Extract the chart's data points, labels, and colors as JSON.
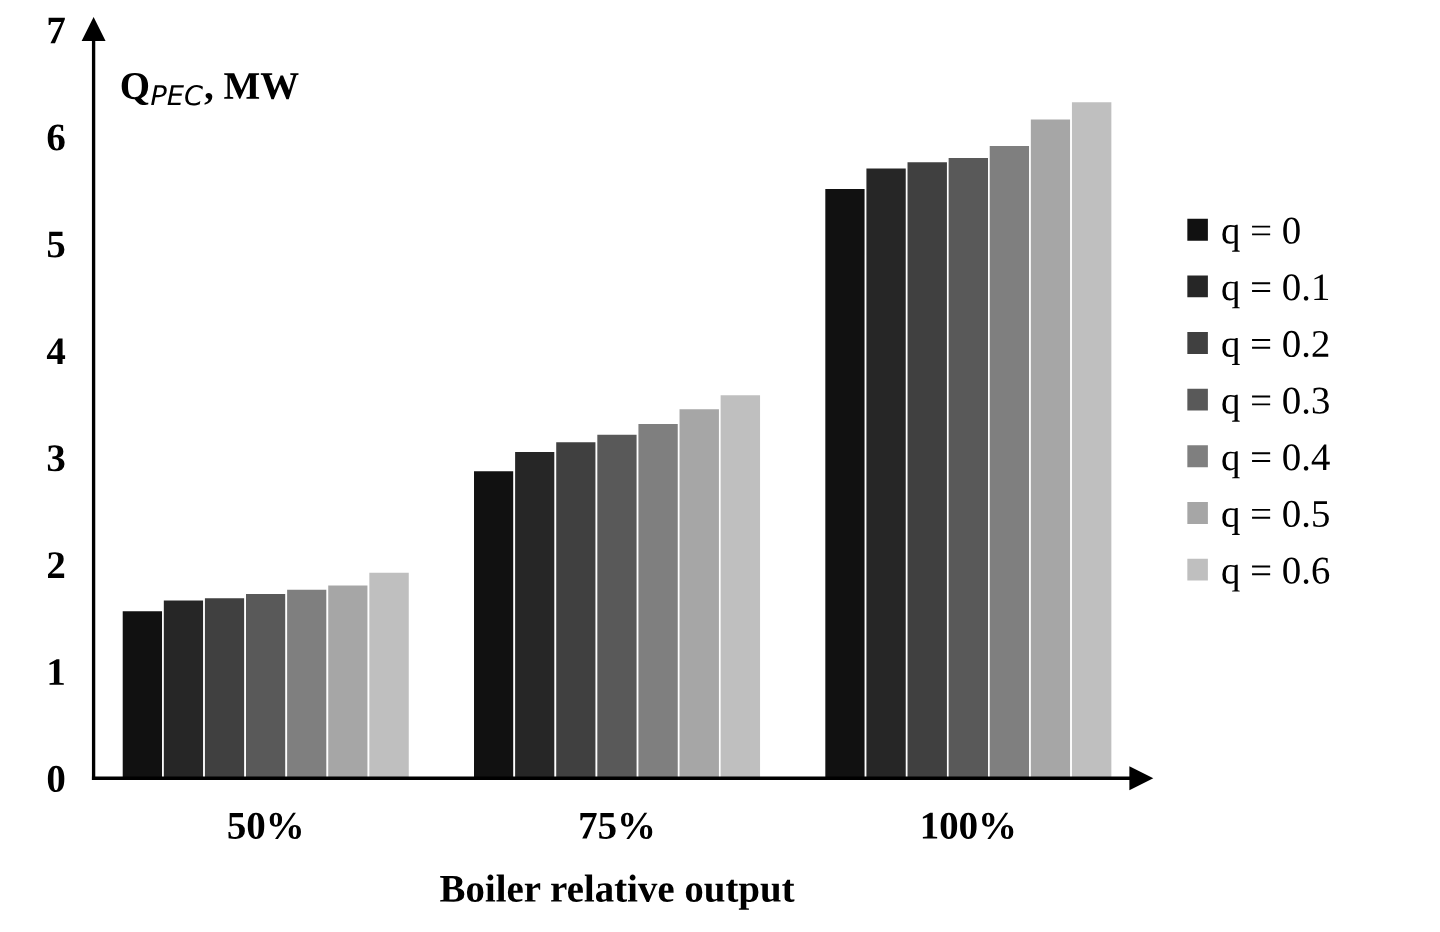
{
  "chart_data": {
    "type": "bar",
    "xlabel": "Boiler relative output",
    "ylabel": "Q$_{PEC}$, MW",
    "categories": [
      "50%",
      "75%",
      "100%"
    ],
    "series": [
      {
        "name": "q = 0",
        "color": "#111111",
        "values": [
          1.57,
          2.88,
          5.52
        ]
      },
      {
        "name": "q = 0.1",
        "color": "#262626",
        "values": [
          1.67,
          3.06,
          5.71
        ]
      },
      {
        "name": "q = 0.2",
        "color": "#404040",
        "values": [
          1.69,
          3.15,
          5.77
        ]
      },
      {
        "name": "q = 0.3",
        "color": "#595959",
        "values": [
          1.73,
          3.22,
          5.81
        ]
      },
      {
        "name": "q = 0.4",
        "color": "#7f7f7f",
        "values": [
          1.77,
          3.32,
          5.92
        ]
      },
      {
        "name": "q = 0.5",
        "color": "#a6a6a6",
        "values": [
          1.81,
          3.46,
          6.17
        ]
      },
      {
        "name": "q = 0.6",
        "color": "#bfbfbf",
        "values": [
          1.93,
          3.59,
          6.33
        ]
      }
    ],
    "ylim": [
      0,
      7
    ],
    "yticks": [
      0,
      1,
      2,
      3,
      4,
      5,
      6,
      7
    ],
    "grid": false,
    "legend": "right"
  }
}
